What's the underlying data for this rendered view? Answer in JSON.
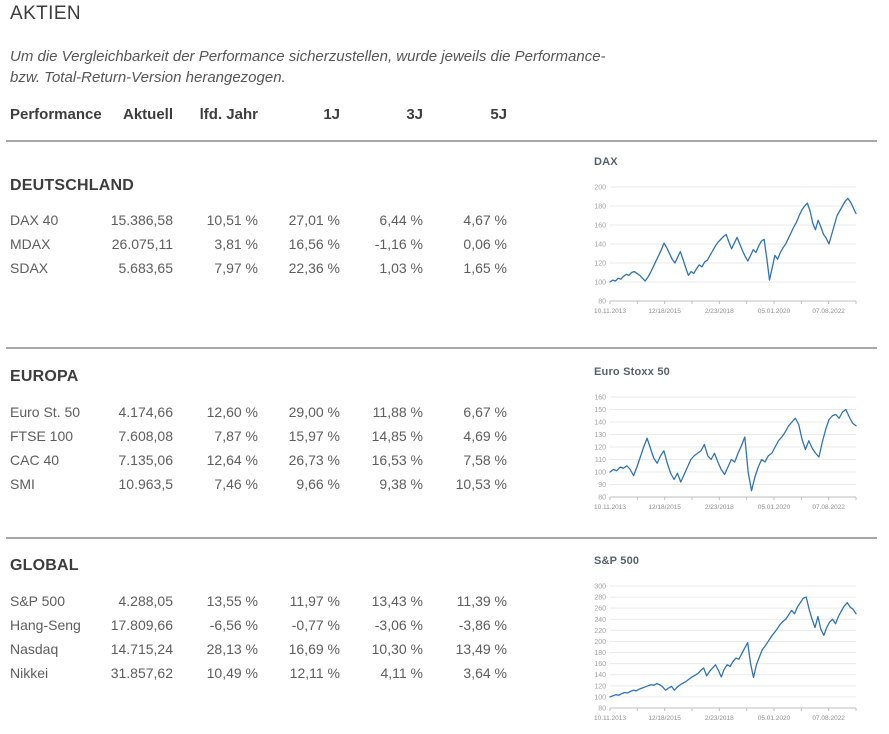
{
  "page": {
    "title": "AKTIEN",
    "note_line1": "Um die Vergleichbarkeit der Performance sicherzustellen, wurde jeweils die Performance-",
    "note_line2": "bzw. Total-Return-Version herangezogen."
  },
  "table": {
    "headers": [
      "Performance",
      "Aktuell",
      "lfd. Jahr",
      "1J",
      "3J",
      "5J"
    ],
    "sections": [
      {
        "title": "DEUTSCHLAND",
        "rows": [
          {
            "label": "DAX 40",
            "values": [
              "15.386,58",
              "10,51 %",
              "27,01 %",
              "6,44 %",
              "4,67 %"
            ]
          },
          {
            "label": "MDAX",
            "values": [
              "26.075,11",
              "3,81 %",
              "16,56 %",
              "-1,16 %",
              "0,06 %"
            ]
          },
          {
            "label": "SDAX",
            "values": [
              "5.683,65",
              "7,97 %",
              "22,36 %",
              "1,03 %",
              "1,65 %"
            ]
          }
        ]
      },
      {
        "title": "EUROPA",
        "rows": [
          {
            "label": "Euro St. 50",
            "values": [
              "4.174,66",
              "12,60 %",
              "29,00 %",
              "11,88 %",
              "6,67 %"
            ]
          },
          {
            "label": "FTSE 100",
            "values": [
              "7.608,08",
              "7,87 %",
              "15,97 %",
              "14,85 %",
              "4,69 %"
            ]
          },
          {
            "label": "CAC 40",
            "values": [
              "7.135,06",
              "12,64 %",
              "26,73 %",
              "16,53 %",
              "7,58 %"
            ]
          },
          {
            "label": "SMI",
            "values": [
              "10.963,5",
              "7,46 %",
              "9,66 %",
              "9,38 %",
              "10,53 %"
            ]
          }
        ]
      },
      {
        "title": "GLOBAL",
        "rows": [
          {
            "label": "S&P 500",
            "values": [
              "4.288,05",
              "13,55 %",
              "11,97 %",
              "13,43 %",
              "11,39 %"
            ]
          },
          {
            "label": "Hang-Seng",
            "values": [
              "17.809,66",
              "-6,56 %",
              "-0,77 %",
              "-3,06 %",
              "-3,86 %"
            ]
          },
          {
            "label": "Nasdaq",
            "values": [
              "14.715,24",
              "28,13 %",
              "16,69 %",
              "10,30 %",
              "13,49 %"
            ]
          },
          {
            "label": "Nikkei",
            "values": [
              "31.857,62",
              "10,49 %",
              "12,11 %",
              "4,11 %",
              "3,64 %"
            ]
          }
        ]
      }
    ]
  },
  "chart_data": [
    {
      "type": "line",
      "title": "DAX",
      "xlabel": "",
      "ylabel": "",
      "grid": true,
      "legend_position": "none",
      "ylim": [
        80,
        200
      ],
      "y_ticks": [
        200,
        180,
        160,
        140,
        120,
        100,
        80
      ],
      "x_labels": [
        "10.11.2013",
        "12/18/2015",
        "2/23/2018",
        "05.01.2020",
        "07.08.2022"
      ],
      "line_color": "#2e74b5",
      "values": [
        100,
        102,
        101,
        104,
        103,
        106,
        108,
        107,
        110,
        111,
        109,
        107,
        104,
        101,
        105,
        110,
        116,
        122,
        128,
        134,
        141,
        136,
        130,
        124,
        120,
        126,
        132,
        124,
        115,
        107,
        111,
        109,
        114,
        118,
        116,
        121,
        123,
        128,
        133,
        138,
        142,
        145,
        148,
        150,
        142,
        135,
        141,
        147,
        140,
        133,
        127,
        122,
        128,
        134,
        131,
        138,
        143,
        145,
        125,
        102,
        115,
        128,
        124,
        131,
        136,
        140,
        146,
        152,
        158,
        163,
        170,
        176,
        180,
        183,
        175,
        162,
        155,
        165,
        158,
        150,
        146,
        140,
        150,
        160,
        170,
        175,
        180,
        185,
        188,
        184,
        178,
        172
      ]
    },
    {
      "type": "line",
      "title": "Euro Stoxx 50",
      "xlabel": "",
      "ylabel": "",
      "grid": true,
      "legend_position": "none",
      "ylim": [
        80,
        160
      ],
      "y_ticks": [
        160,
        150,
        140,
        130,
        120,
        110,
        100,
        90,
        80
      ],
      "x_labels": [
        "10.11.2013",
        "12/18/2015",
        "2/23/2018",
        "05.01.2020",
        "07.08.2022"
      ],
      "line_color": "#2e74b5",
      "values": [
        100,
        102,
        101,
        104,
        103,
        105,
        102,
        97,
        104,
        112,
        120,
        127,
        119,
        111,
        107,
        113,
        117,
        107,
        99,
        94,
        99,
        92,
        98,
        104,
        110,
        113,
        115,
        117,
        122,
        113,
        110,
        115,
        108,
        102,
        98,
        104,
        110,
        108,
        115,
        121,
        128,
        100,
        85,
        96,
        104,
        110,
        108,
        113,
        115,
        120,
        125,
        128,
        132,
        137,
        140,
        143,
        138,
        126,
        118,
        125,
        119,
        115,
        112,
        124,
        134,
        142,
        145,
        146,
        143,
        148,
        150,
        144,
        139,
        137
      ]
    },
    {
      "type": "line",
      "title": "S&P 500",
      "xlabel": "",
      "ylabel": "",
      "grid": true,
      "legend_position": "none",
      "ylim": [
        80,
        300
      ],
      "y_ticks": [
        300,
        280,
        260,
        240,
        220,
        200,
        180,
        160,
        140,
        120,
        100,
        80
      ],
      "x_labels": [
        "10.11.2013",
        "12/18/2015",
        "2/23/2018",
        "05.01.2020",
        "07.08.2022"
      ],
      "line_color": "#2e74b5",
      "values": [
        100,
        102,
        104,
        103,
        106,
        108,
        107,
        110,
        112,
        111,
        114,
        116,
        118,
        120,
        122,
        121,
        124,
        122,
        118,
        112,
        116,
        119,
        112,
        118,
        122,
        125,
        128,
        132,
        136,
        139,
        142,
        148,
        152,
        138,
        146,
        152,
        158,
        148,
        136,
        150,
        158,
        155,
        164,
        170,
        168,
        178,
        188,
        198,
        160,
        135,
        158,
        172,
        185,
        192,
        200,
        208,
        215,
        222,
        230,
        236,
        240,
        248,
        256,
        250,
        262,
        270,
        278,
        280,
        258,
        240,
        225,
        245,
        222,
        211,
        225,
        235,
        240,
        232,
        245,
        255,
        264,
        270,
        262,
        258,
        250
      ]
    }
  ],
  "colors": {
    "heading": "#3d3d3d",
    "body_text": "#5d5d5d",
    "divider": "#a8a8a8",
    "chart_line": "#2e74b5",
    "chart_title": "#55626e"
  }
}
